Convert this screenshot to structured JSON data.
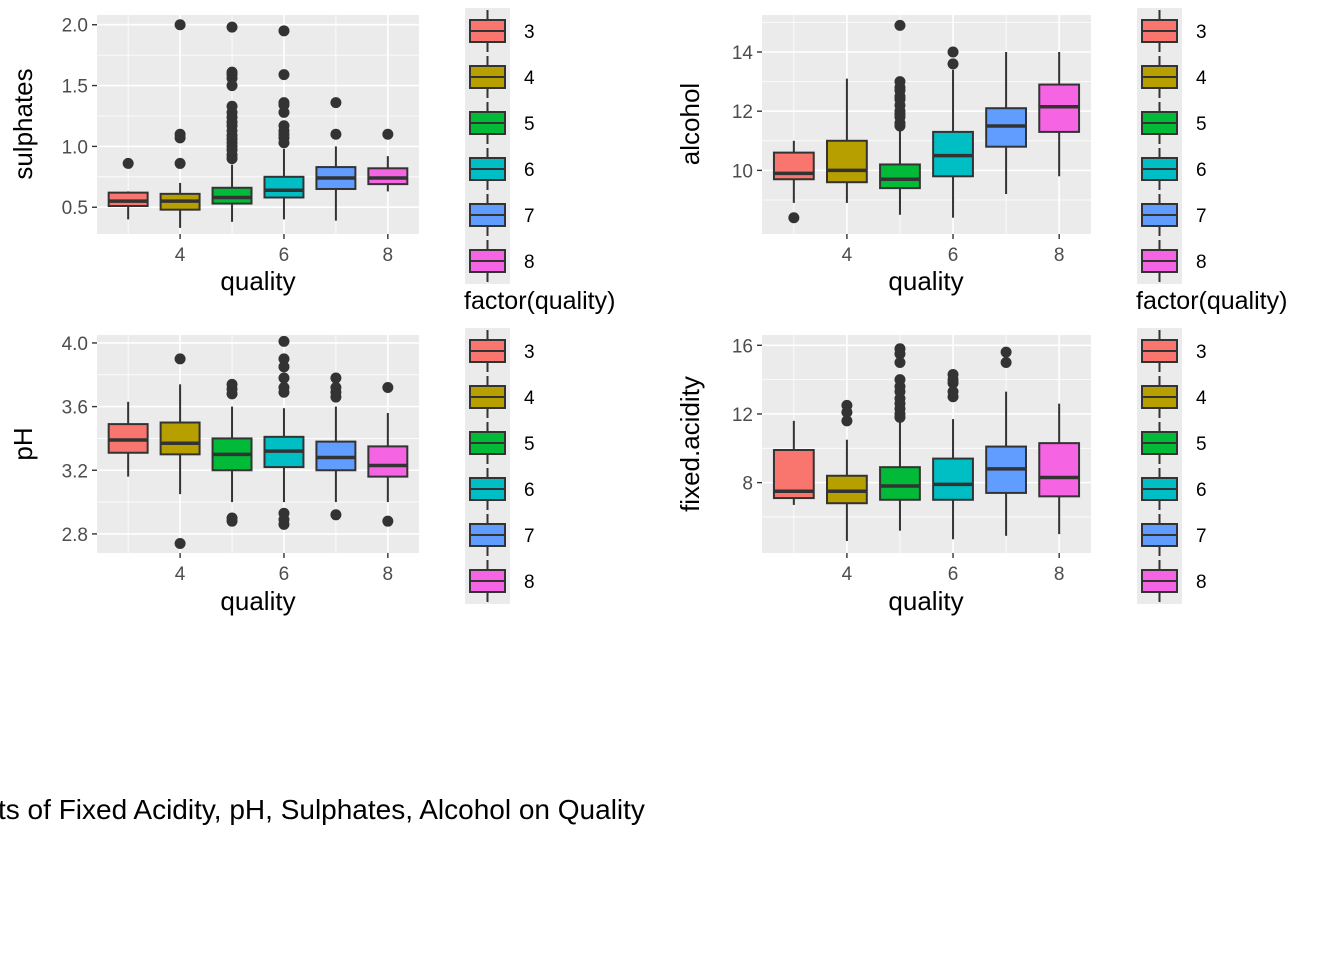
{
  "colors": {
    "panel_bg": "#ebebeb",
    "grid": "#ffffff",
    "box_outline": "#333333",
    "levels": {
      "3": "#f8766d",
      "4": "#b79f00",
      "5": "#00ba38",
      "6": "#00bfc4",
      "7": "#619cff",
      "8": "#f564e3"
    }
  },
  "caption": "ts of Fixed Acidity, pH, Sulphates, Alcohol on Quality",
  "chart_data": [
    {
      "type": "boxplot",
      "id": "sulphates",
      "xlabel": "quality",
      "ylabel": "sulphates",
      "x_ticks": [
        4,
        6,
        8
      ],
      "y_ticks": [
        0.5,
        1.0,
        1.5,
        2.0
      ],
      "y_tick_labels": [
        "0.5",
        "1.0",
        "1.5",
        "2.0"
      ],
      "xlim": [
        2.4,
        8.6
      ],
      "ylim": [
        0.28,
        2.08
      ],
      "legend_title": "factor(quality)",
      "legend_levels": [
        "3",
        "4",
        "5",
        "6",
        "7",
        "8"
      ],
      "boxes": [
        {
          "quality": 3,
          "low": 0.4,
          "q1": 0.51,
          "median": 0.55,
          "q3": 0.62,
          "high": 0.63,
          "outliers": [
            0.86
          ]
        },
        {
          "quality": 4,
          "low": 0.33,
          "q1": 0.48,
          "median": 0.55,
          "q3": 0.61,
          "high": 0.7,
          "outliers": [
            0.86,
            1.07,
            1.1,
            2.0
          ]
        },
        {
          "quality": 5,
          "low": 0.38,
          "q1": 0.53,
          "median": 0.58,
          "q3": 0.66,
          "high": 0.85,
          "outliers": [
            0.9,
            0.93,
            0.97,
            1.0,
            1.03,
            1.06,
            1.09,
            1.13,
            1.17,
            1.2,
            1.24,
            1.28,
            1.33,
            1.5,
            1.56,
            1.59,
            1.61,
            1.98
          ]
        },
        {
          "quality": 6,
          "low": 0.4,
          "q1": 0.58,
          "median": 0.64,
          "q3": 0.75,
          "high": 0.98,
          "outliers": [
            1.03,
            1.07,
            1.1,
            1.13,
            1.17,
            1.28,
            1.34,
            1.36,
            1.59,
            1.95
          ]
        },
        {
          "quality": 7,
          "low": 0.39,
          "q1": 0.65,
          "median": 0.74,
          "q3": 0.83,
          "high": 1.0,
          "outliers": [
            1.1,
            1.36
          ]
        },
        {
          "quality": 8,
          "low": 0.63,
          "q1": 0.69,
          "median": 0.74,
          "q3": 0.82,
          "high": 0.92,
          "outliers": [
            1.1
          ]
        }
      ]
    },
    {
      "type": "boxplot",
      "id": "alcohol",
      "xlabel": "quality",
      "ylabel": "alcohol",
      "x_ticks": [
        4,
        6,
        8
      ],
      "y_ticks": [
        10,
        12,
        14
      ],
      "y_tick_labels": [
        "10",
        "12",
        "14"
      ],
      "xlim": [
        2.4,
        8.6
      ],
      "ylim": [
        7.85,
        15.25
      ],
      "legend_title": "factor(quality)",
      "legend_levels": [
        "3",
        "4",
        "5",
        "6",
        "7",
        "8"
      ],
      "boxes": [
        {
          "quality": 3,
          "low": 8.9,
          "q1": 9.7,
          "median": 9.9,
          "q3": 10.6,
          "high": 11.0,
          "outliers": [
            8.4
          ]
        },
        {
          "quality": 4,
          "low": 8.9,
          "q1": 9.6,
          "median": 10.0,
          "q3": 11.0,
          "high": 13.1,
          "outliers": []
        },
        {
          "quality": 5,
          "low": 8.5,
          "q1": 9.4,
          "median": 9.7,
          "q3": 10.2,
          "high": 11.4,
          "outliers": [
            11.5,
            11.6,
            11.8,
            11.9,
            12.0,
            12.2,
            12.4,
            12.5,
            12.7,
            12.8,
            13.0,
            14.9
          ]
        },
        {
          "quality": 6,
          "low": 8.4,
          "q1": 9.8,
          "median": 10.5,
          "q3": 11.3,
          "high": 13.4,
          "outliers": [
            13.6,
            14.0
          ]
        },
        {
          "quality": 7,
          "low": 9.2,
          "q1": 10.8,
          "median": 11.5,
          "q3": 12.1,
          "high": 14.0,
          "outliers": []
        },
        {
          "quality": 8,
          "low": 9.8,
          "q1": 11.3,
          "median": 12.15,
          "q3": 12.9,
          "high": 14.0,
          "outliers": []
        }
      ]
    },
    {
      "type": "boxplot",
      "id": "pH",
      "xlabel": "quality",
      "ylabel": "pH",
      "x_ticks": [
        4,
        6,
        8
      ],
      "y_ticks": [
        2.8,
        3.2,
        3.6,
        4.0
      ],
      "y_tick_labels": [
        "2.8",
        "3.2",
        "3.6",
        "4.0"
      ],
      "xlim": [
        2.4,
        8.6
      ],
      "ylim": [
        2.68,
        4.05
      ],
      "legend_title": "",
      "legend_levels": [
        "3",
        "4",
        "5",
        "6",
        "7",
        "8"
      ],
      "boxes": [
        {
          "quality": 3,
          "low": 3.16,
          "q1": 3.31,
          "median": 3.39,
          "q3": 3.49,
          "high": 3.63,
          "outliers": []
        },
        {
          "quality": 4,
          "low": 3.05,
          "q1": 3.3,
          "median": 3.37,
          "q3": 3.5,
          "high": 3.74,
          "outliers": [
            2.74,
            3.9
          ]
        },
        {
          "quality": 5,
          "low": 3.0,
          "q1": 3.2,
          "median": 3.3,
          "q3": 3.4,
          "high": 3.6,
          "outliers": [
            2.88,
            2.9,
            3.68,
            3.71,
            3.74
          ]
        },
        {
          "quality": 6,
          "low": 3.0,
          "q1": 3.22,
          "median": 3.32,
          "q3": 3.41,
          "high": 3.59,
          "outliers": [
            2.86,
            2.89,
            2.93,
            3.69,
            3.72,
            3.78,
            3.85,
            3.9,
            4.01
          ]
        },
        {
          "quality": 7,
          "low": 3.0,
          "q1": 3.2,
          "median": 3.28,
          "q3": 3.38,
          "high": 3.6,
          "outliers": [
            2.92,
            3.66,
            3.69,
            3.72,
            3.78
          ]
        },
        {
          "quality": 8,
          "low": 3.0,
          "q1": 3.16,
          "median": 3.23,
          "q3": 3.35,
          "high": 3.56,
          "outliers": [
            2.88,
            3.72
          ]
        }
      ]
    },
    {
      "type": "boxplot",
      "id": "fixed_acidity",
      "xlabel": "quality",
      "ylabel": "fixed.acidity",
      "x_ticks": [
        4,
        6,
        8
      ],
      "y_ticks": [
        8,
        12,
        16
      ],
      "y_tick_labels": [
        "8",
        "12",
        "16"
      ],
      "xlim": [
        2.4,
        8.6
      ],
      "ylim": [
        3.9,
        16.6
      ],
      "legend_title": "",
      "legend_levels": [
        "3",
        "4",
        "5",
        "6",
        "7",
        "8"
      ],
      "boxes": [
        {
          "quality": 3,
          "low": 6.7,
          "q1": 7.1,
          "median": 7.5,
          "q3": 9.9,
          "high": 11.6,
          "outliers": []
        },
        {
          "quality": 4,
          "low": 4.6,
          "q1": 6.8,
          "median": 7.5,
          "q3": 8.4,
          "high": 10.5,
          "outliers": [
            11.6,
            12.1,
            12.5
          ]
        },
        {
          "quality": 5,
          "low": 5.2,
          "q1": 7.0,
          "median": 7.8,
          "q3": 8.9,
          "high": 11.5,
          "outliers": [
            11.8,
            12.0,
            12.3,
            12.6,
            12.9,
            13.3,
            13.6,
            14.0,
            15.0,
            15.5,
            15.8
          ]
        },
        {
          "quality": 6,
          "low": 4.7,
          "q1": 7.0,
          "median": 7.9,
          "q3": 9.4,
          "high": 11.7,
          "outliers": [
            13.0,
            13.3,
            13.8,
            14.0,
            14.3
          ]
        },
        {
          "quality": 7,
          "low": 4.9,
          "q1": 7.4,
          "median": 8.8,
          "q3": 10.1,
          "high": 13.3,
          "outliers": [
            15.0,
            15.6
          ]
        },
        {
          "quality": 8,
          "low": 5.0,
          "q1": 7.2,
          "median": 8.3,
          "q3": 10.3,
          "high": 12.6,
          "outliers": []
        }
      ]
    }
  ]
}
